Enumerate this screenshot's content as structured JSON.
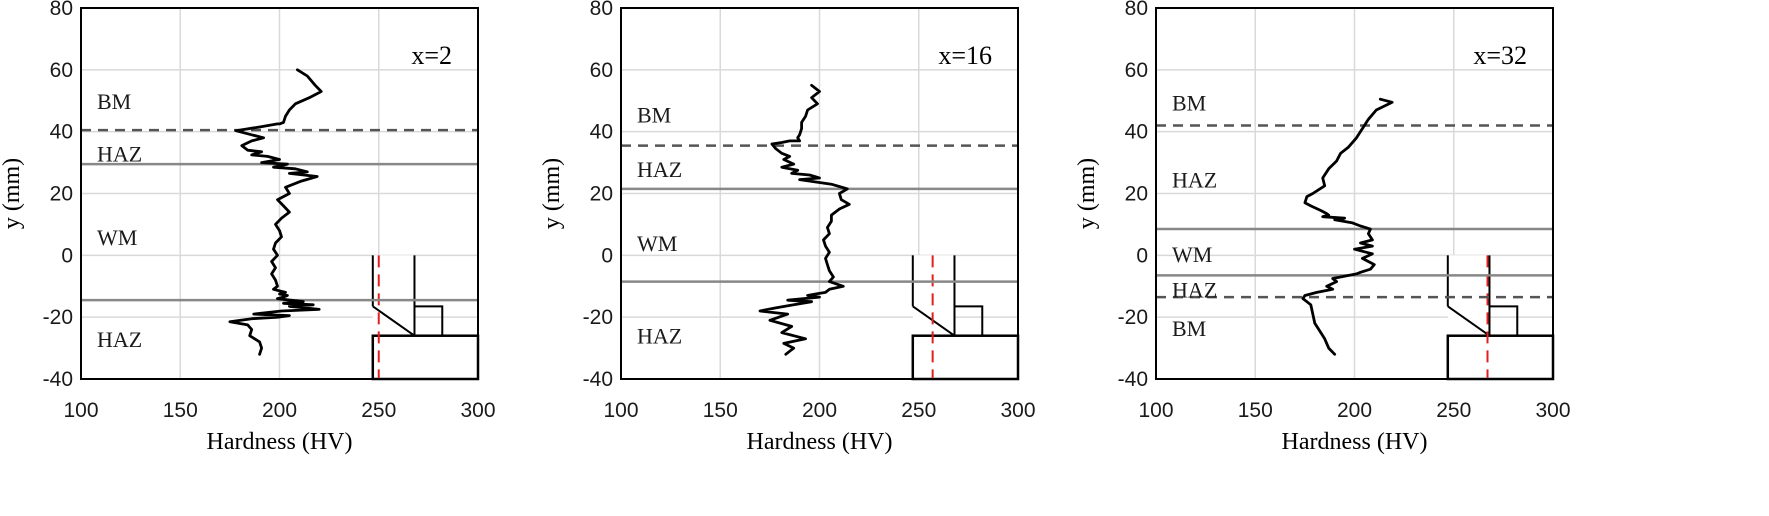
{
  "chart_data": [
    {
      "type": "line",
      "title": "x=2",
      "xlabel": "Hardness (HV)",
      "ylabel": "y (mm)",
      "xlim": [
        100,
        300
      ],
      "ylim": [
        -40,
        80
      ],
      "xticks": [
        "100",
        "150",
        "200",
        "250",
        "300"
      ],
      "yticks": [
        "-40",
        "-20",
        "0",
        "20",
        "40",
        "60",
        "80"
      ],
      "grid": true,
      "series": [
        {
          "x": [
            209,
            214,
            218,
            221,
            215,
            208,
            205,
            203,
            202,
            200,
            199,
            190,
            178,
            186,
            192,
            186,
            181,
            184,
            191,
            186,
            194,
            200,
            191,
            204,
            197,
            208,
            214,
            205,
            219,
            211,
            203,
            205,
            199,
            202,
            205,
            201,
            198,
            200,
            201,
            198,
            197,
            199,
            196,
            198,
            196,
            198,
            199,
            197,
            200,
            203,
            200,
            204,
            202,
            199,
            212,
            202,
            217,
            205,
            220,
            201,
            187,
            205,
            199,
            186,
            175,
            184,
            186,
            185,
            190,
            191,
            190
          ],
          "y": [
            60,
            58,
            55,
            53,
            51,
            49,
            47,
            45,
            43,
            42.5,
            42.5,
            41.5,
            40.3,
            39,
            38,
            37,
            35.5,
            34,
            33.5,
            32.5,
            32,
            31,
            30,
            29.5,
            28.5,
            28,
            27,
            26.5,
            25.5,
            24,
            22,
            20,
            18,
            16,
            14,
            12,
            10,
            8,
            6,
            4,
            2,
            0,
            -2,
            -4,
            -6,
            -8,
            -10,
            -11,
            -11.5,
            -12,
            -12.5,
            -13,
            -13.5,
            -14,
            -15,
            -15.5,
            -16,
            -16.5,
            -17.5,
            -18,
            -19,
            -19.5,
            -20,
            -20.5,
            -21.5,
            -22.5,
            -24,
            -26,
            -28,
            -30,
            -32
          ]
        }
      ],
      "boundaries": [
        {
          "y": 40.5,
          "style": "dashed",
          "color": "#555555"
        },
        {
          "y": 29.5,
          "style": "solid",
          "color": "#888888"
        },
        {
          "y": -14.5,
          "style": "solid",
          "color": "#888888"
        }
      ],
      "regions": [
        {
          "label": "BM",
          "y": 50
        },
        {
          "label": "HAZ",
          "y": 33
        },
        {
          "label": "WM",
          "y": 6
        },
        {
          "label": "HAZ",
          "y": -27
        }
      ],
      "inset_section_x": 250
    },
    {
      "type": "line",
      "title": "x=16",
      "xlabel": "Hardness (HV)",
      "ylabel": "y (mm)",
      "xlim": [
        100,
        300
      ],
      "ylim": [
        -40,
        80
      ],
      "xticks": [
        "100",
        "150",
        "200",
        "250",
        "300"
      ],
      "yticks": [
        "-40",
        "-20",
        "0",
        "20",
        "40",
        "60",
        "80"
      ],
      "grid": true,
      "series": [
        {
          "x": [
            196,
            200,
            196,
            199,
            194,
            193,
            191,
            191,
            190,
            189,
            190,
            185,
            181,
            176,
            178,
            181,
            185,
            182,
            187,
            181,
            189,
            186,
            195,
            200,
            190,
            206,
            214,
            210,
            211,
            215,
            210,
            206,
            206,
            204,
            205,
            202,
            203,
            205,
            203,
            204,
            205,
            207,
            205,
            212,
            205,
            203,
            198,
            194,
            200,
            184,
            196,
            187,
            178,
            170,
            184,
            175,
            186,
            181,
            193,
            182,
            187,
            185,
            183
          ],
          "y": [
            55,
            53,
            51,
            49,
            47,
            45,
            43,
            41,
            39,
            38,
            37,
            37,
            36.5,
            36,
            34.5,
            33,
            32,
            31,
            29.5,
            28.5,
            27.5,
            26.5,
            26,
            25,
            24.5,
            23,
            21.5,
            20,
            18,
            16.5,
            15,
            13,
            11,
            9,
            7,
            5,
            3,
            1,
            -1,
            -3,
            -5,
            -7,
            -8.5,
            -10,
            -11,
            -12,
            -12.5,
            -13,
            -13.5,
            -14.5,
            -15,
            -16,
            -17,
            -18,
            -19,
            -21,
            -23,
            -25,
            -27,
            -28.5,
            -30,
            -31,
            -32
          ]
        }
      ],
      "boundaries": [
        {
          "y": 35.5,
          "style": "dashed",
          "color": "#555555"
        },
        {
          "y": 21.5,
          "style": "solid",
          "color": "#888888"
        },
        {
          "y": -8.5,
          "style": "solid",
          "color": "#888888"
        }
      ],
      "regions": [
        {
          "label": "BM",
          "y": 45.5
        },
        {
          "label": "HAZ",
          "y": 28
        },
        {
          "label": "WM",
          "y": 4
        },
        {
          "label": "HAZ",
          "y": -26
        }
      ],
      "inset_section_x": 257
    },
    {
      "type": "line",
      "title": "x=32",
      "xlabel": "Hardness (HV)",
      "ylabel": "y (mm)",
      "xlim": [
        100,
        300
      ],
      "ylim": [
        -40,
        80
      ],
      "xticks": [
        "100",
        "150",
        "200",
        "250",
        "300"
      ],
      "yticks": [
        "-40",
        "-20",
        "0",
        "20",
        "40",
        "60",
        "80"
      ],
      "grid": true,
      "series": [
        {
          "x": [
            213,
            219,
            211,
            207,
            204,
            201,
            197,
            193,
            191,
            187,
            184,
            185,
            179,
            176,
            175,
            178,
            183,
            186,
            187,
            184,
            195,
            190,
            199,
            203,
            208,
            207,
            209,
            203,
            209,
            200,
            209,
            204,
            210,
            208,
            203,
            201,
            189,
            191,
            186,
            189,
            181,
            175,
            174,
            176,
            178,
            179,
            180,
            182,
            185,
            187,
            190
          ],
          "y": [
            50.5,
            49.5,
            47,
            44,
            41,
            38,
            35,
            33,
            30.5,
            28,
            25,
            22.5,
            20,
            19,
            17,
            16,
            14.5,
            13.5,
            13,
            12.5,
            12,
            11.5,
            10.5,
            9.5,
            8.5,
            7,
            5,
            4,
            3,
            2,
            0.5,
            -1,
            -3,
            -4.5,
            -5.5,
            -6,
            -7.5,
            -8.5,
            -10,
            -11,
            -12,
            -13,
            -14,
            -15,
            -16,
            -19,
            -22,
            -24,
            -27,
            -30,
            -32
          ]
        }
      ],
      "boundaries": [
        {
          "y": 42,
          "style": "dashed",
          "color": "#555555"
        },
        {
          "y": 8.5,
          "style": "solid",
          "color": "#888888"
        },
        {
          "y": -6.5,
          "style": "solid",
          "color": "#888888"
        },
        {
          "y": -13.5,
          "style": "dashed",
          "color": "#555555"
        }
      ],
      "regions": [
        {
          "label": "BM",
          "y": 49.5
        },
        {
          "label": "HAZ",
          "y": 24.5
        },
        {
          "label": "WM",
          "y": 0.5
        },
        {
          "label": "HAZ",
          "y": -11
        },
        {
          "label": "BM",
          "y": -23.5
        }
      ],
      "inset_section_x": 267
    }
  ]
}
